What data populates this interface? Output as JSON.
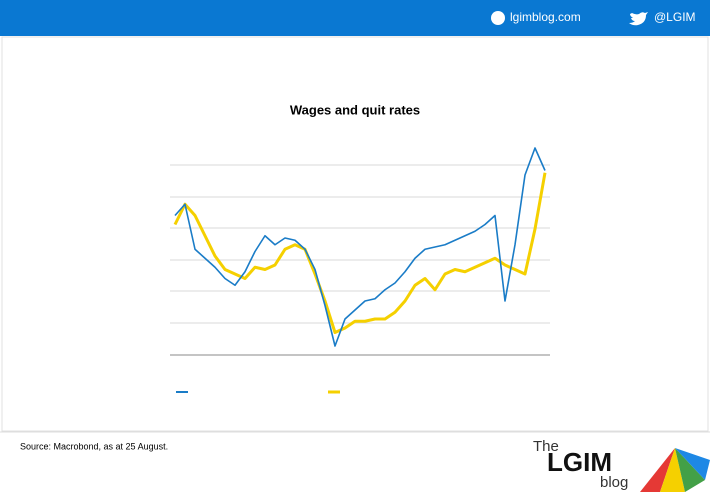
{
  "header": {
    "site": "lgimblog.com",
    "handle": "@LGIM"
  },
  "chart_data": {
    "type": "line",
    "title": "Wages and quit rates",
    "series": [
      {
        "color": "#1a7cc7",
        "values": [
          62,
          67,
          47,
          43,
          39,
          34,
          31,
          37,
          46,
          53,
          49,
          52,
          51,
          47,
          38,
          22,
          4,
          16,
          20,
          24,
          25,
          29,
          32,
          37,
          43,
          47,
          48,
          49,
          51,
          53,
          55,
          58,
          62,
          24,
          49,
          80,
          92,
          82
        ]
      },
      {
        "color": "#f5d000",
        "values": [
          58,
          67,
          62,
          53,
          44,
          38,
          36,
          34,
          39,
          38,
          40,
          47,
          49,
          47,
          36,
          24,
          10,
          12,
          15,
          15,
          16,
          16,
          19,
          24,
          31,
          34,
          29,
          36,
          38,
          37,
          39,
          41,
          43,
          40,
          38,
          36,
          56,
          81
        ]
      }
    ],
    "ylim": [
      0,
      100
    ]
  },
  "footer": {
    "source": "Source: Macrobond, as at 25 August.",
    "logo_the": "The",
    "logo_main": "LGIM",
    "logo_blog": "blog"
  }
}
